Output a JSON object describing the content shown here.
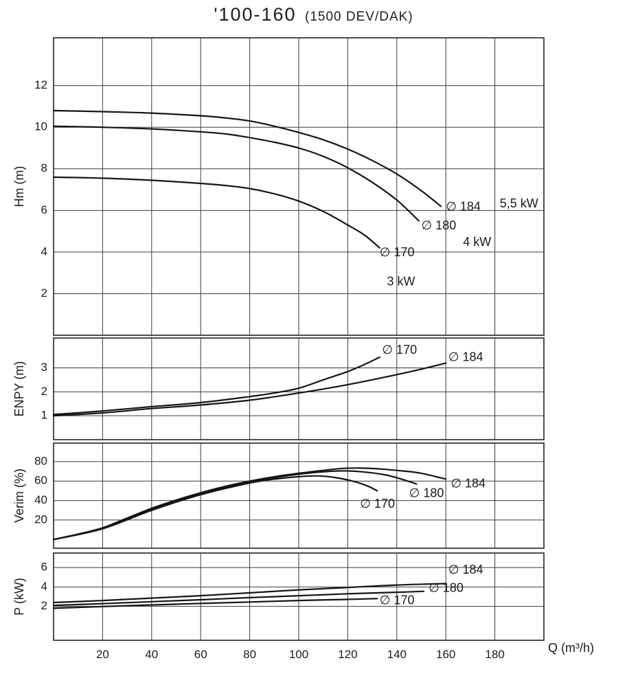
{
  "title": {
    "main": "'100-160",
    "sub": "(1500 DEV/DAK)"
  },
  "colors": {
    "background": "#ffffff",
    "curve": "#141414",
    "grid": "#3a3a3a",
    "border": "#222222",
    "text": "#1a1a1a",
    "power_label": "#c22323"
  },
  "x_axis": {
    "label": "Q (m³/h)",
    "lim": [
      0,
      200
    ],
    "ticks": [
      20,
      40,
      60,
      80,
      100,
      120,
      140,
      160,
      180
    ]
  },
  "chart_data": [
    {
      "type": "line",
      "id": "head",
      "ylabel": "Hm (m)",
      "ylim": [
        0,
        14.3
      ],
      "yticks": [
        2,
        4,
        6,
        8,
        10,
        12
      ],
      "series": [
        {
          "name": "∅ 184",
          "x": [
            0,
            20,
            40,
            60,
            70,
            80,
            90,
            100,
            110,
            120,
            130,
            140,
            150,
            158
          ],
          "y": [
            10.8,
            10.75,
            10.68,
            10.55,
            10.45,
            10.3,
            10.05,
            9.75,
            9.4,
            8.95,
            8.4,
            7.75,
            6.95,
            6.2
          ]
        },
        {
          "name": "∅ 180",
          "x": [
            0,
            20,
            40,
            60,
            70,
            80,
            90,
            100,
            110,
            120,
            130,
            140,
            149
          ],
          "y": [
            10.05,
            10.0,
            9.92,
            9.78,
            9.68,
            9.5,
            9.28,
            9.0,
            8.6,
            8.05,
            7.35,
            6.5,
            5.5
          ]
        },
        {
          "name": "∅ 170",
          "x": [
            0,
            20,
            40,
            60,
            70,
            80,
            90,
            100,
            110,
            120,
            127,
            133
          ],
          "y": [
            7.6,
            7.55,
            7.45,
            7.3,
            7.2,
            7.05,
            6.8,
            6.45,
            5.95,
            5.3,
            4.8,
            4.2
          ]
        }
      ],
      "annotations": [
        {
          "text": "∅ 184",
          "q": 160,
          "v": 6.15
        },
        {
          "text": "5,5 kW",
          "q": 182,
          "v": 6.3,
          "color": "#c22323"
        },
        {
          "text": "∅ 180",
          "q": 150,
          "v": 5.25
        },
        {
          "text": "4 kW",
          "q": 167,
          "v": 4.45,
          "color": "#c22323"
        },
        {
          "text": "∅ 170",
          "q": 133,
          "v": 3.95
        },
        {
          "text": "3 kW",
          "q": 136,
          "v": 2.55,
          "color": "#c22323"
        }
      ]
    },
    {
      "type": "line",
      "id": "enpy",
      "ylabel": "ENPY (m)",
      "ylim": [
        0,
        4.25
      ],
      "yticks": [
        1,
        2,
        3
      ],
      "series": [
        {
          "name": "∅ 170",
          "x": [
            0,
            20,
            40,
            60,
            80,
            90,
            100,
            110,
            120,
            127,
            133
          ],
          "y": [
            1.05,
            1.2,
            1.38,
            1.55,
            1.8,
            1.95,
            2.15,
            2.5,
            2.85,
            3.15,
            3.45
          ]
        },
        {
          "name": "∅ 184",
          "x": [
            0,
            20,
            40,
            60,
            80,
            100,
            120,
            140,
            150,
            160
          ],
          "y": [
            1.0,
            1.12,
            1.3,
            1.45,
            1.65,
            1.95,
            2.3,
            2.72,
            2.95,
            3.2
          ]
        }
      ],
      "annotations": [
        {
          "text": "∅ 170",
          "q": 134,
          "v": 3.72
        },
        {
          "text": "∅ 184",
          "q": 161,
          "v": 3.42
        }
      ]
    },
    {
      "type": "line",
      "id": "verim",
      "ylabel": "Verim (%)",
      "ylim": [
        -9,
        99
      ],
      "yticks": [
        20,
        40,
        60,
        80
      ],
      "series": [
        {
          "name": "∅ 184",
          "x": [
            0,
            10,
            20,
            30,
            40,
            50,
            60,
            70,
            80,
            90,
            100,
            110,
            118,
            126,
            134,
            142,
            150,
            160
          ],
          "y": [
            0,
            5.5,
            12,
            22,
            32,
            40.5,
            48,
            54.5,
            60,
            64.5,
            68,
            71,
            73,
            73.3,
            72.3,
            70.5,
            68,
            62
          ]
        },
        {
          "name": "∅ 180",
          "x": [
            0,
            20,
            40,
            60,
            80,
            90,
            100,
            110,
            118,
            126,
            135,
            142,
            148
          ],
          "y": [
            0,
            11.5,
            31,
            47,
            59,
            63.5,
            67,
            69.5,
            70.5,
            69.5,
            66.5,
            62,
            57
          ]
        },
        {
          "name": "∅ 170",
          "x": [
            0,
            20,
            40,
            60,
            80,
            90,
            100,
            107,
            114,
            122,
            128,
            132
          ],
          "y": [
            0,
            11,
            30,
            46,
            58,
            62,
            64.5,
            65.3,
            64,
            60,
            55,
            50
          ]
        }
      ],
      "annotations": [
        {
          "text": "∅ 184",
          "q": 162,
          "v": 57
        },
        {
          "text": "∅ 180",
          "q": 145,
          "v": 47
        },
        {
          "text": "∅ 170",
          "q": 125,
          "v": 36
        }
      ]
    },
    {
      "type": "line",
      "id": "power",
      "ylabel": "P (kW)",
      "ylim": [
        -1.5,
        7.5
      ],
      "yticks": [
        2,
        4,
        6
      ],
      "series": [
        {
          "name": "∅ 184",
          "x": [
            0,
            20,
            40,
            60,
            80,
            100,
            120,
            140,
            160
          ],
          "y": [
            2.4,
            2.6,
            2.85,
            3.1,
            3.4,
            3.7,
            3.95,
            4.2,
            4.35
          ]
        },
        {
          "name": "∅ 180",
          "x": [
            0,
            20,
            40,
            60,
            80,
            100,
            120,
            140,
            151
          ],
          "y": [
            2.1,
            2.28,
            2.48,
            2.68,
            2.9,
            3.1,
            3.3,
            3.45,
            3.55
          ]
        },
        {
          "name": "∅ 170",
          "x": [
            0,
            20,
            40,
            60,
            80,
            100,
            120,
            132
          ],
          "y": [
            1.8,
            1.98,
            2.15,
            2.3,
            2.45,
            2.6,
            2.72,
            2.8
          ]
        }
      ],
      "annotations": [
        {
          "text": "∅ 184",
          "q": 161,
          "v": 5.7
        },
        {
          "text": "∅ 180",
          "q": 153,
          "v": 3.85
        },
        {
          "text": "∅ 170",
          "q": 133,
          "v": 2.55
        }
      ]
    }
  ]
}
